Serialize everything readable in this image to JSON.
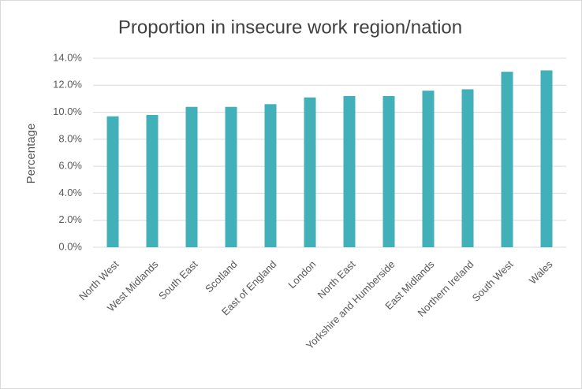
{
  "chart_data": {
    "type": "bar",
    "title": "Proportion in insecure work region/nation",
    "y_label": "Percentage",
    "categories": [
      "North West",
      "West Midlands",
      "South East",
      "Scotland",
      "East of England",
      "London",
      "North East",
      "Yorkshire and Humberside",
      "East Midlands",
      "Northern Ireland",
      "South West",
      "Wales"
    ],
    "values": [
      9.7,
      9.8,
      10.4,
      10.4,
      10.6,
      11.1,
      11.2,
      11.2,
      11.6,
      11.7,
      13.0,
      13.1
    ],
    "color": "#41b0b9",
    "ylim": [
      0,
      14
    ],
    "yticks": [
      {
        "value": 0,
        "label": "0.0%"
      },
      {
        "value": 2,
        "label": "2.0%"
      },
      {
        "value": 4,
        "label": "4.0%"
      },
      {
        "value": 6,
        "label": "6.0%"
      },
      {
        "value": 8,
        "label": "8.0%"
      },
      {
        "value": 10,
        "label": "10.0%"
      },
      {
        "value": 12,
        "label": "12.0%"
      },
      {
        "value": 14,
        "label": "14.0%"
      }
    ],
    "grid": true
  }
}
